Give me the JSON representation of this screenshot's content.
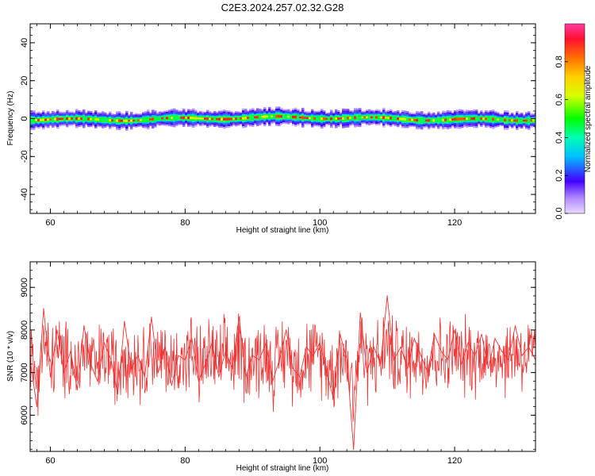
{
  "title": "C2E3.2024.257.02.32.G28",
  "chart_data": [
    {
      "type": "heatmap",
      "xlabel": "Height of straight line (km)",
      "ylabel": "Frequency (Hz)",
      "xlim": [
        57,
        132
      ],
      "ylim": [
        -50,
        50
      ],
      "xticks": [
        60,
        80,
        100,
        120
      ],
      "yticks": [
        -40,
        -20,
        0,
        20,
        40
      ],
      "band_center_hz": 0,
      "band_halfwidth_hz": 4,
      "colorbar": {
        "label": "Normalized spectral amplitude",
        "range": [
          0,
          1
        ],
        "ticks": [
          0.0,
          0.2,
          0.4,
          0.6,
          0.8
        ]
      }
    },
    {
      "type": "line",
      "xlabel": "Height of straight line (km)",
      "ylabel": "SNR (10 * v/v)",
      "xlim": [
        57,
        132
      ],
      "ylim": [
        5150,
        9600
      ],
      "xticks": [
        60,
        80,
        100,
        120
      ],
      "yticks": [
        6000,
        7000,
        8000,
        9000
      ],
      "series": [
        {
          "color": "#ee3333",
          "x": [
            57,
            58,
            59,
            60,
            61,
            62,
            63,
            64,
            65,
            66,
            67,
            68,
            69,
            70,
            71,
            72,
            73,
            74,
            75,
            76,
            77,
            78,
            79,
            80,
            81,
            82,
            83,
            84,
            85,
            86,
            87,
            88,
            89,
            90,
            91,
            92,
            93,
            94,
            95,
            96,
            97,
            98,
            99,
            100,
            101,
            102,
            103,
            104,
            105,
            106,
            107,
            108,
            109,
            110,
            111,
            112,
            113,
            114,
            115,
            116,
            117,
            118,
            119,
            120,
            121,
            122,
            123,
            124,
            125,
            126,
            127,
            128,
            129,
            130,
            131,
            132
          ],
          "y": [
            7300,
            6200,
            8500,
            6900,
            8000,
            7000,
            7500,
            6600,
            8100,
            7200,
            6800,
            7700,
            7300,
            6500,
            8200,
            7100,
            7400,
            6900,
            8300,
            7000,
            7600,
            6700,
            7400,
            7300,
            7800,
            6800,
            7200,
            7700,
            6900,
            7500,
            7100,
            8300,
            6900,
            7400,
            7300,
            7700,
            6800,
            7300,
            8000,
            7100,
            6900,
            7600,
            7400,
            7700,
            7000,
            6400,
            7900,
            7300,
            5200,
            8400,
            7000,
            7600,
            7200,
            8800,
            7300,
            7600,
            7100,
            7800,
            7400,
            7000,
            7900,
            7500,
            7300,
            8000,
            7200,
            7700,
            7400,
            7900,
            7100,
            7800,
            7500,
            7300,
            8100,
            7400,
            7600,
            7300
          ]
        }
      ]
    }
  ]
}
